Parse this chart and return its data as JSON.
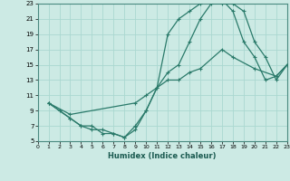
{
  "xlabel": "Humidex (Indice chaleur)",
  "xlim": [
    0,
    23
  ],
  "ylim": [
    5,
    23
  ],
  "xticks": [
    0,
    1,
    2,
    3,
    4,
    5,
    6,
    7,
    8,
    9,
    10,
    11,
    12,
    13,
    14,
    15,
    16,
    17,
    18,
    19,
    20,
    21,
    22,
    23
  ],
  "yticks": [
    5,
    7,
    9,
    11,
    13,
    15,
    17,
    19,
    21,
    23
  ],
  "grid_color": "#aad8d0",
  "line_color": "#2a7a6a",
  "bg_color": "#cceae4",
  "line1_x": [
    1,
    2,
    3,
    4,
    5,
    6,
    7,
    8,
    9,
    10,
    11,
    12,
    13,
    14,
    15,
    16,
    17,
    18,
    19,
    20,
    21,
    22,
    23
  ],
  "line1_y": [
    10,
    9,
    8,
    7,
    7,
    6,
    6,
    5.5,
    7,
    9,
    12,
    14,
    15,
    18,
    21,
    23,
    23,
    23,
    22,
    18,
    16,
    13,
    15
  ],
  "line2_x": [
    1,
    3,
    4,
    5,
    6,
    7,
    8,
    9,
    10,
    11,
    12,
    13,
    14,
    15,
    16,
    17,
    18,
    19,
    20,
    21,
    22,
    23
  ],
  "line2_y": [
    10,
    8,
    7,
    6.5,
    6.5,
    6,
    5.5,
    6.5,
    9,
    12,
    19,
    21,
    22,
    23,
    23.5,
    23.5,
    22,
    18,
    16,
    13,
    13.5,
    15
  ],
  "line3_x": [
    1,
    3,
    9,
    10,
    12,
    13,
    14,
    15,
    17,
    18,
    20,
    22,
    23
  ],
  "line3_y": [
    10,
    8.5,
    10,
    11,
    13,
    13,
    14,
    14.5,
    17,
    16,
    14.5,
    13.5,
    15
  ]
}
